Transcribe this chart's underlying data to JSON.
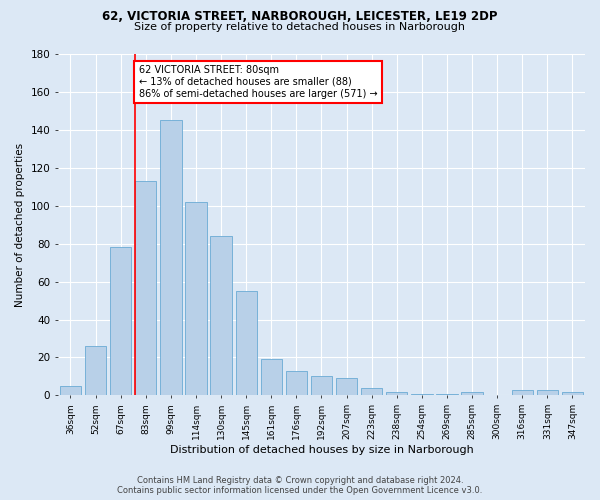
{
  "title_line1": "62, VICTORIA STREET, NARBOROUGH, LEICESTER, LE19 2DP",
  "title_line2": "Size of property relative to detached houses in Narborough",
  "xlabel": "Distribution of detached houses by size in Narborough",
  "ylabel": "Number of detached properties",
  "categories": [
    "36sqm",
    "52sqm",
    "67sqm",
    "83sqm",
    "99sqm",
    "114sqm",
    "130sqm",
    "145sqm",
    "161sqm",
    "176sqm",
    "192sqm",
    "207sqm",
    "223sqm",
    "238sqm",
    "254sqm",
    "269sqm",
    "285sqm",
    "300sqm",
    "316sqm",
    "331sqm",
    "347sqm"
  ],
  "values": [
    5,
    26,
    78,
    113,
    145,
    102,
    84,
    55,
    19,
    13,
    10,
    9,
    4,
    2,
    1,
    1,
    2,
    0,
    3,
    3,
    2
  ],
  "bar_color": "#b8d0e8",
  "bar_edgecolor": "#6aaad4",
  "annotation_line1": "62 VICTORIA STREET: 80sqm",
  "annotation_line2": "← 13% of detached houses are smaller (88)",
  "annotation_line3": "86% of semi-detached houses are larger (571) →",
  "annotation_box_color": "white",
  "annotation_box_edgecolor": "red",
  "vline_color": "red",
  "ylim": [
    0,
    180
  ],
  "yticks": [
    0,
    20,
    40,
    60,
    80,
    100,
    120,
    140,
    160,
    180
  ],
  "background_color": "#dce8f5",
  "grid_color": "white",
  "footer_line1": "Contains HM Land Registry data © Crown copyright and database right 2024.",
  "footer_line2": "Contains public sector information licensed under the Open Government Licence v3.0."
}
